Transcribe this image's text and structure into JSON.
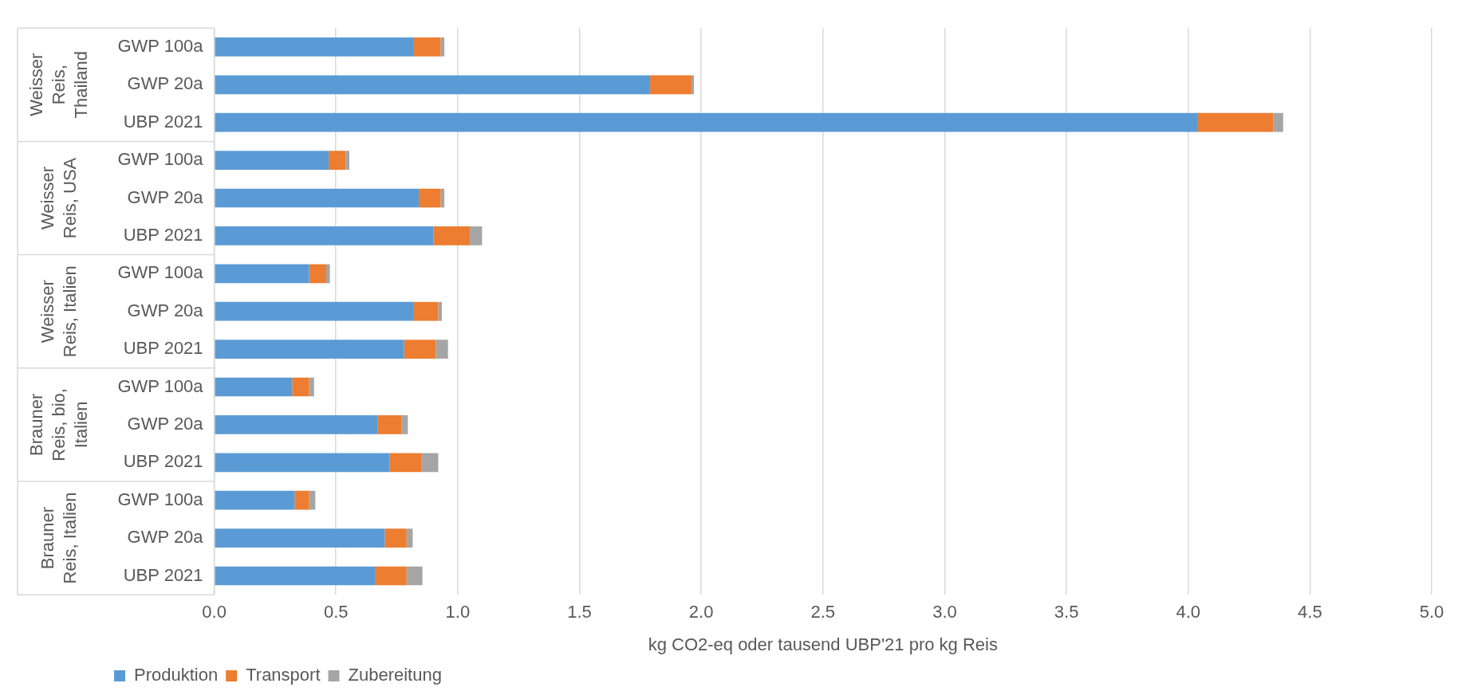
{
  "chart_data": {
    "type": "bar",
    "orientation": "horizontal",
    "stacked": true,
    "categories": [
      "GWP 100a",
      "GWP 20a",
      "UBP 2021",
      "GWP 100a",
      "GWP 20a",
      "UBP 2021",
      "GWP 100a",
      "GWP 20a",
      "UBP 2021",
      "GWP 100a",
      "GWP 20a",
      "UBP 2021",
      "GWP 100a",
      "GWP 20a",
      "UBP 2021"
    ],
    "series": [
      {
        "name": "Produktion",
        "color": "#5b9bd5",
        "values": [
          0.82,
          1.79,
          4.04,
          0.47,
          0.84,
          0.9,
          0.39,
          0.82,
          0.78,
          0.32,
          0.67,
          0.72,
          0.33,
          0.7,
          0.66
        ]
      },
      {
        "name": "Transport",
        "color": "#ed7d31",
        "values": [
          0.11,
          0.17,
          0.31,
          0.07,
          0.09,
          0.15,
          0.07,
          0.1,
          0.13,
          0.07,
          0.1,
          0.13,
          0.06,
          0.09,
          0.13
        ]
      },
      {
        "name": "Zubereitung",
        "color": "#a5a5a5",
        "values": [
          0.015,
          0.01,
          0.04,
          0.015,
          0.015,
          0.05,
          0.015,
          0.015,
          0.05,
          0.02,
          0.025,
          0.07,
          0.025,
          0.025,
          0.065
        ]
      }
    ],
    "annotations": [
      "Weisser Reis, Thailand",
      "Weisser Reis, USA",
      "Weisser Reis, Italien",
      "Brauner Reis, bio, Italien",
      "Brauner Reis, Italien"
    ],
    "xlabel": "kg CO2-eq oder tausend UBP'21 pro kg Reis",
    "xlim": [
      0,
      5
    ],
    "xticks": [
      {
        "value": 0,
        "label": "0.0"
      },
      0.5,
      {
        "value": 1,
        "label": "1.0"
      },
      1.5,
      {
        "value": 2,
        "label": "2.0"
      },
      2.5,
      {
        "value": 3,
        "label": "3.0"
      },
      3.5,
      {
        "value": 4,
        "label": "4.0"
      },
      4.5,
      {
        "value": 5,
        "label": "5.0"
      }
    ],
    "grid": "x",
    "legend": "bottom left"
  }
}
